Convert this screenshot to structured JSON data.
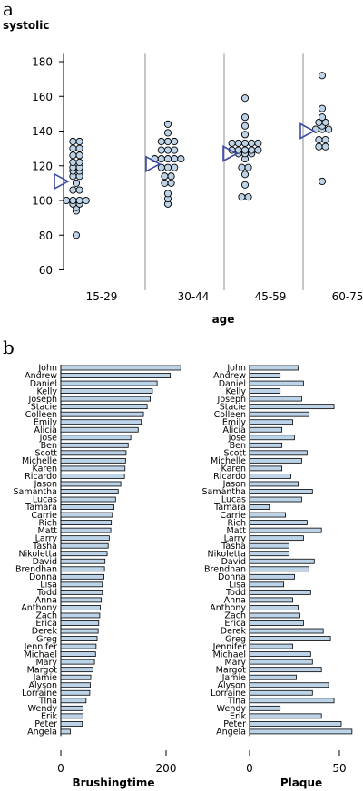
{
  "chart_data": [
    {
      "type": "scatter",
      "panel": "a",
      "ylabel": "systolic",
      "xlabel": "age",
      "ylim": [
        60,
        185
      ],
      "yticks": [
        60,
        80,
        100,
        120,
        140,
        160,
        180
      ],
      "categories": [
        "15-29",
        "30-44",
        "45-59",
        "60-75"
      ],
      "groups": [
        {
          "category": "15-29",
          "mean": 111,
          "values": [
            80,
            94,
            96,
            98,
            98,
            100,
            100,
            100,
            100,
            106,
            106,
            110,
            114,
            114,
            117,
            117,
            119,
            119,
            122,
            122,
            126,
            126,
            130,
            130,
            134,
            134
          ]
        },
        {
          "category": "30-44",
          "mean": 121,
          "values": [
            98,
            101,
            104,
            110,
            110,
            114,
            114,
            119,
            119,
            119,
            124,
            124,
            124,
            124,
            124,
            129,
            129,
            129,
            134,
            134,
            134,
            139,
            144
          ]
        },
        {
          "category": "45-59",
          "mean": 127,
          "values": [
            102,
            103,
            109,
            115,
            119,
            120,
            124,
            127,
            127,
            127,
            129,
            129,
            129,
            130,
            130,
            133,
            133,
            133,
            133,
            133,
            138,
            143,
            148,
            159
          ]
        },
        {
          "category": "60-75",
          "mean": 140,
          "values": [
            111,
            131,
            131,
            135,
            135,
            141,
            141,
            141,
            143,
            145,
            145,
            148,
            153,
            172
          ]
        }
      ],
      "marker_colors": {
        "dot_fill": "#bcd3e8",
        "mean_marker": "#3d4aa6"
      }
    },
    {
      "type": "bar",
      "panel": "b",
      "orientation": "horizontal",
      "categories": [
        "John",
        "Andrew",
        "Daniel",
        "Kelly",
        "Joseph",
        "Stacie",
        "Colleen",
        "Emily",
        "Alicia",
        "Jose",
        "Ben",
        "Scott",
        "Michelle",
        "Karen",
        "Ricardo",
        "Jason",
        "Samantha",
        "Lucas",
        "Tamara",
        "Carrie",
        "Rich",
        "Matt",
        "Larry",
        "Tasha",
        "Nikoletta",
        "David",
        "Brendhan",
        "Donna",
        "Lisa",
        "Todd",
        "Anna",
        "Anthony",
        "Zach",
        "Erica",
        "Derek",
        "Greg",
        "Jennifer",
        "Michael",
        "Mary",
        "Margot",
        "Jamie",
        "Alyson",
        "Lorraine",
        "Tina",
        "Wendy",
        "Erik",
        "Peter",
        "Angela"
      ],
      "series": [
        {
          "name": "Brushingtime",
          "xticks": [
            0,
            200
          ],
          "xlim": [
            0,
            230
          ],
          "values": [
            228,
            208,
            183,
            174,
            170,
            164,
            157,
            153,
            147,
            133,
            128,
            124,
            123,
            122,
            121,
            114,
            109,
            104,
            101,
            98,
            96,
            95,
            92,
            90,
            88,
            84,
            83,
            82,
            79,
            79,
            77,
            75,
            74,
            72,
            71,
            69,
            67,
            66,
            64,
            61,
            57,
            56,
            55,
            48,
            42,
            42,
            41,
            18
          ]
        },
        {
          "name": "Plaque",
          "xticks": [
            0,
            50
          ],
          "xlim": [
            0,
            58
          ],
          "values": [
            27,
            17,
            30,
            17,
            29,
            47,
            33,
            24,
            18,
            25,
            18,
            32,
            29,
            18,
            23,
            27,
            35,
            29,
            11,
            20,
            32,
            40,
            30,
            22,
            22,
            36,
            33,
            25,
            19,
            34,
            24,
            27,
            28,
            30,
            41,
            45,
            24,
            34,
            35,
            40,
            26,
            44,
            35,
            47,
            17,
            40,
            51,
            57
          ]
        }
      ],
      "bar_color": "#bcd3e8"
    }
  ],
  "labels": {
    "panel_a": "a",
    "panel_b": "b"
  }
}
